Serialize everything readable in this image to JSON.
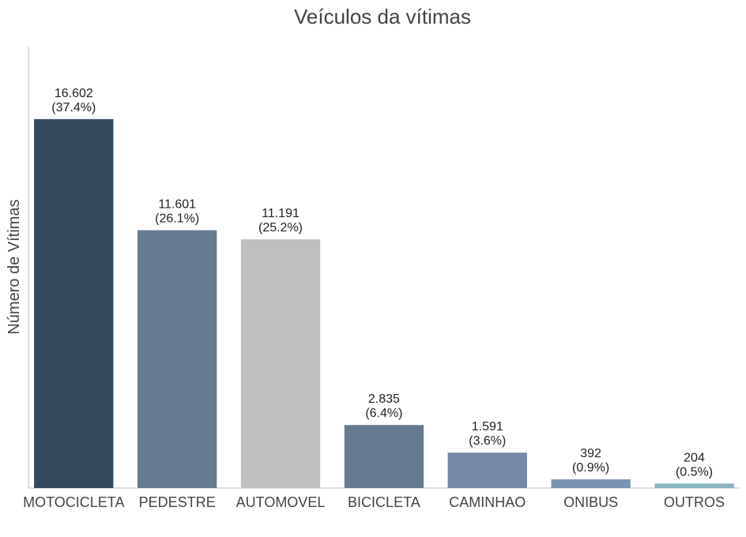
{
  "chart_data": {
    "type": "bar",
    "title": "Veículos da vítimas",
    "xlabel": "",
    "ylabel": "Número de Vítimas",
    "categories": [
      "MOTOCICLETA",
      "PEDESTRE",
      "AUTOMOVEL",
      "BICICLETA",
      "CAMINHAO",
      "ONIBUS",
      "OUTROS"
    ],
    "values": [
      16602,
      11601,
      11191,
      2835,
      1591,
      392,
      204
    ],
    "value_labels": [
      "16.602",
      "11.601",
      "11.191",
      "2.835",
      "1.591",
      "392",
      "204"
    ],
    "percent_labels": [
      "(37.4%)",
      "(26.1%)",
      "(25.2%)",
      "(6.4%)",
      "(3.6%)",
      "(0.9%)",
      "(0.5%)"
    ],
    "colors": [
      "#34495e",
      "#647b91",
      "#bfbfbf",
      "#647b91",
      "#7289a8",
      "#7a94b5",
      "#87b3c3"
    ],
    "ylim": [
      0,
      19900
    ],
    "grid": false,
    "show_y_ticks": false
  }
}
